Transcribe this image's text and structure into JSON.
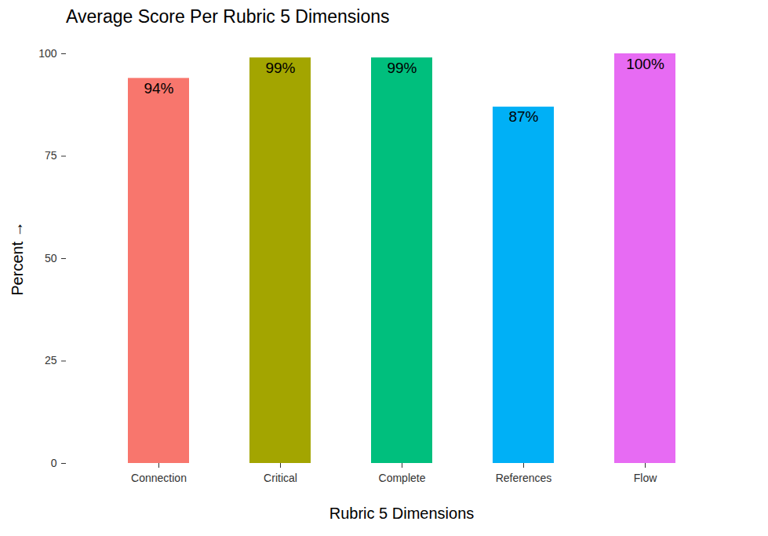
{
  "chart_data": {
    "type": "bar",
    "title": "Average Score Per Rubric 5 Dimensions",
    "x_label": "Rubric 5 Dimensions",
    "y_label": "Percent",
    "categories": [
      "Connection",
      "Critical",
      "Complete",
      "References",
      "Flow"
    ],
    "values": [
      94,
      99,
      99,
      87,
      100
    ],
    "value_labels": [
      "94%",
      "99%",
      "99%",
      "87%",
      "100%"
    ],
    "colors": [
      "#F8766D",
      "#A3A500",
      "#00BF7D",
      "#00B0F6",
      "#E76BF3"
    ],
    "ylim": [
      0,
      100
    ],
    "yticks": [
      0,
      25,
      50,
      75,
      100
    ],
    "grid": false,
    "data_labels": true
  }
}
